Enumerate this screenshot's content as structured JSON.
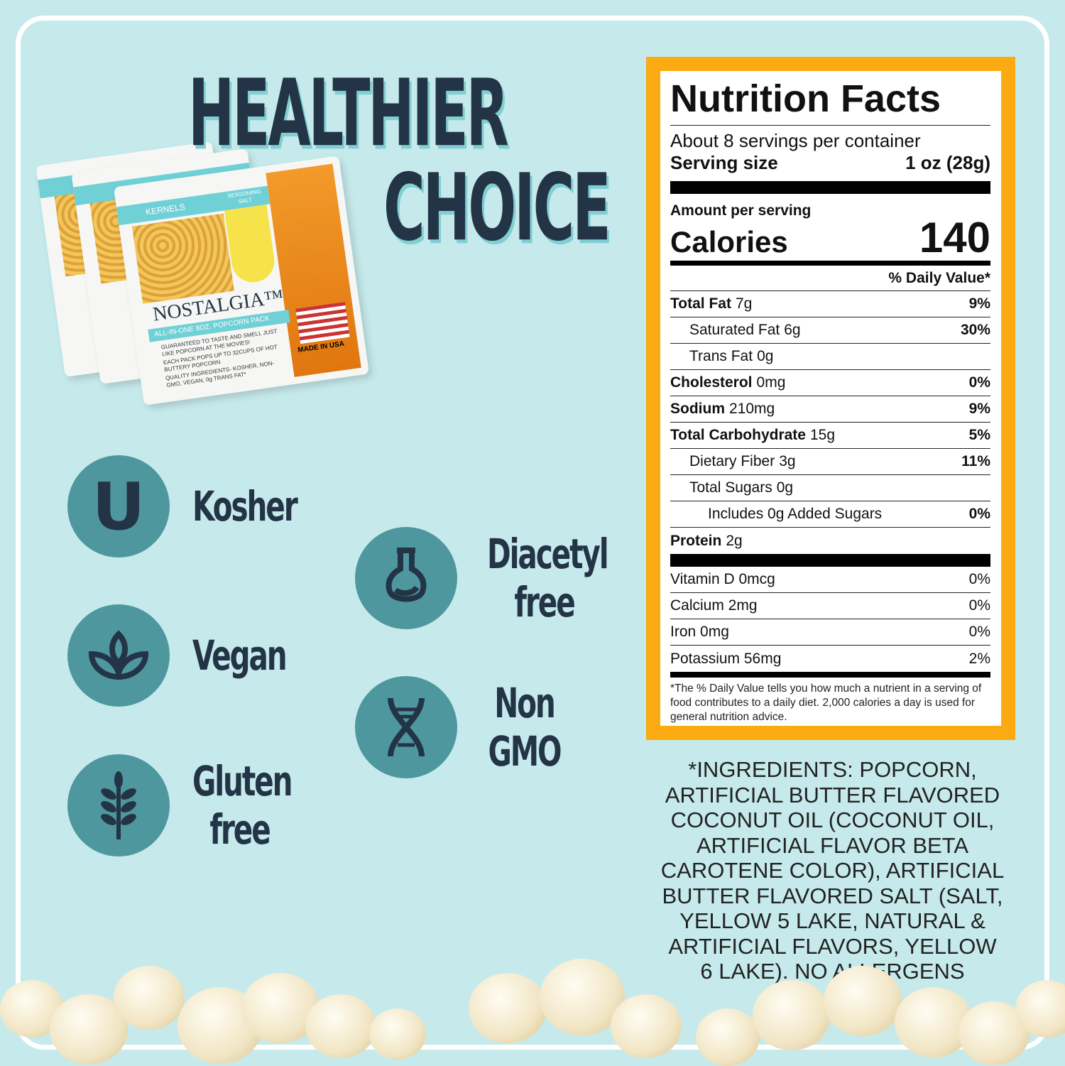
{
  "headline": {
    "line1": "HEALTHIER",
    "line2": "CHOICE"
  },
  "package": {
    "brand": "NOSTALGIA™",
    "band1": "KERNELS",
    "band2": "SEASONING SALT",
    "subtitle": "ALL-IN-ONE 8OZ. POPCORN PACK",
    "line1": "GUARANTEED TO TASTE AND SMELL JUST LIKE POPCORN AT THE MOVIES!",
    "line2": "EACH PACK POPS UP TO 32CUPS OF HOT BUTTERY POPCORN",
    "line3": "QUALITY INGREDIENTS- KOSHER, NON-GMO, VEGAN, 0g TRANS FAT*",
    "flag": "MADE IN USA"
  },
  "badges": [
    {
      "label": "Kosher",
      "icon": "kosher-u-icon"
    },
    {
      "label": "Vegan",
      "icon": "leaf-icon"
    },
    {
      "label": "Gluten free",
      "icon": "wheat-icon"
    },
    {
      "label": "Diacetyl free",
      "icon": "flask-icon"
    },
    {
      "label": "Non GMO",
      "icon": "dna-icon"
    }
  ],
  "nutrition": {
    "title": "Nutrition Facts",
    "servings": "About 8 servings per container",
    "serving_size_label": "Serving size",
    "serving_size": "1 oz (28g)",
    "amount_label": "Amount per serving",
    "calories_label": "Calories",
    "calories": "140",
    "dv_header": "% Daily Value*",
    "rows": [
      {
        "name": "Total Fat",
        "amount": "7g",
        "dv": "9%"
      },
      {
        "name": "Saturated Fat",
        "amount": "6g",
        "dv": "30%"
      },
      {
        "name": "Trans Fat",
        "amount": "0g",
        "dv": ""
      },
      {
        "name": "Cholesterol",
        "amount": "0mg",
        "dv": "0%"
      },
      {
        "name": "Sodium",
        "amount": "210mg",
        "dv": "9%"
      },
      {
        "name": "Total Carbohydrate",
        "amount": "15g",
        "dv": "5%"
      },
      {
        "name": "Dietary Fiber",
        "amount": "3g",
        "dv": "11%"
      },
      {
        "name": "Total Sugars",
        "amount": "0g",
        "dv": ""
      },
      {
        "name": "Includes 0g Added Sugars",
        "amount": "",
        "dv": "0%"
      },
      {
        "name": "Protein",
        "amount": "2g",
        "dv": ""
      }
    ],
    "vitamins": [
      {
        "name": "Vitamin D 0mcg",
        "dv": "0%"
      },
      {
        "name": "Calcium 2mg",
        "dv": "0%"
      },
      {
        "name": "Iron 0mg",
        "dv": "0%"
      },
      {
        "name": "Potassium 56mg",
        "dv": "2%"
      }
    ],
    "footnote": "*The % Daily Value tells you how much a nutrient in a serving of food contributes to a daily diet. 2,000 calories a day is used for general nutrition advice."
  },
  "ingredients": "*INGREDIENTS: POPCORN, ARTIFICIAL BUTTER FLAVORED COCONUT OIL (COCONUT OIL, ARTIFICIAL FLAVOR BETA CAROTENE COLOR), ARTIFICIAL BUTTER FLAVORED SALT (SALT, YELLOW 5 LAKE, NATURAL & ARTIFICIAL FLAVORS, YELLOW 6 LAKE). NO ALLERGENS",
  "colors": {
    "background": "#c6eaeb",
    "navy": "#243447",
    "teal": "#4f979e",
    "label_border": "#fbaa12"
  }
}
